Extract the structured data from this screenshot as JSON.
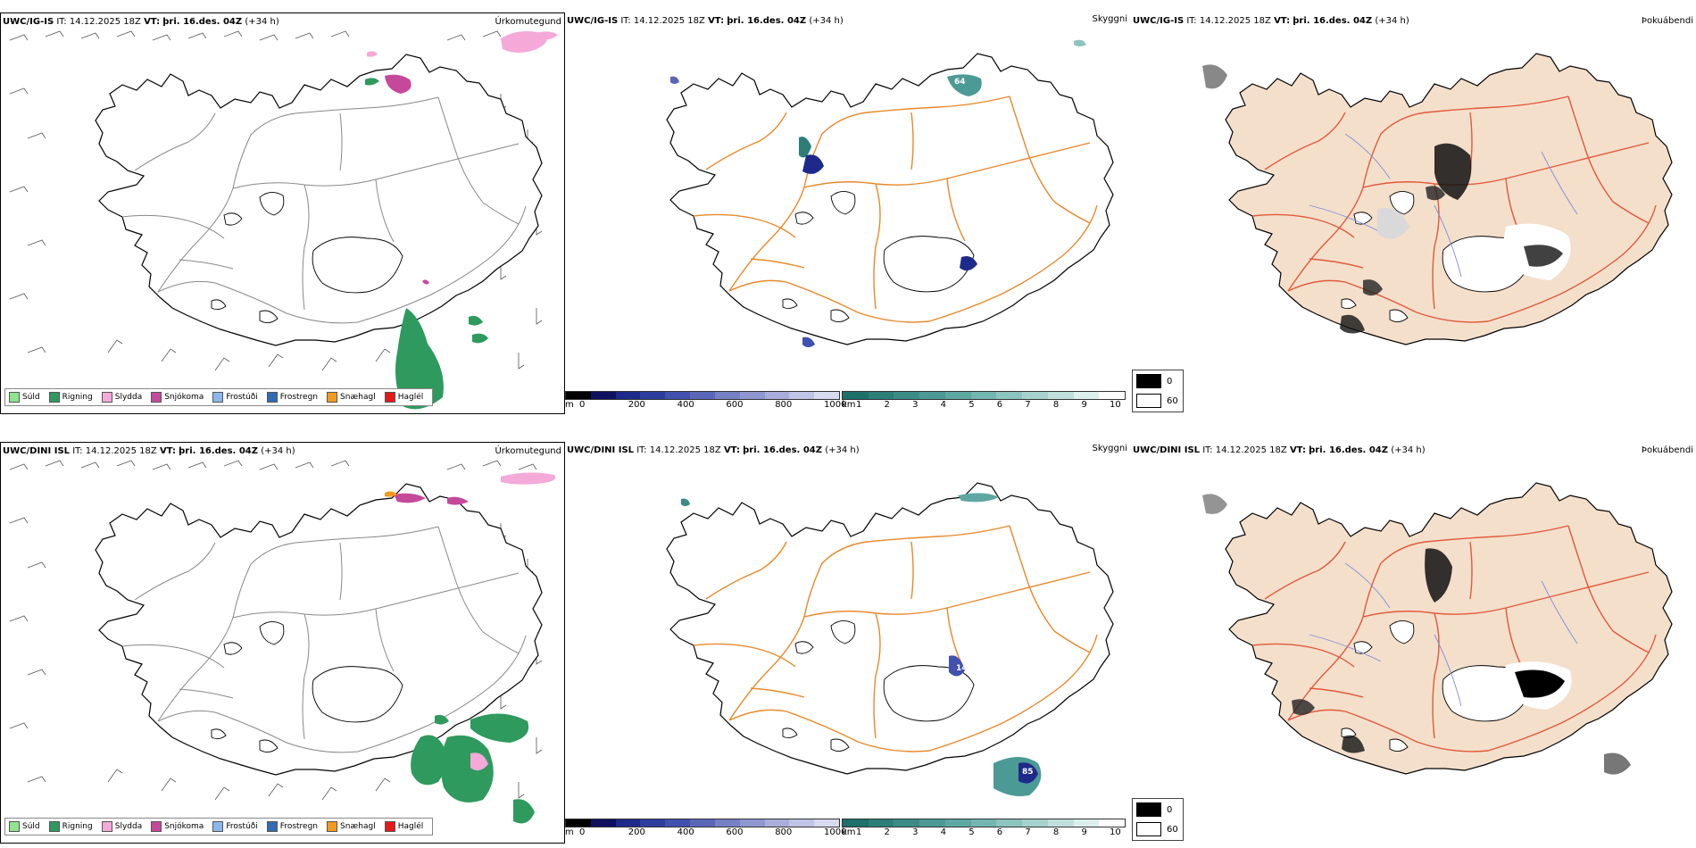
{
  "rows": [
    {
      "header": {
        "model": "UWC/IG-IS",
        "it_label": "IT:",
        "it_value": "14.12.2025 18Z",
        "vt_label": "VT:",
        "vt_value": "þri. 16.des. 04Z",
        "lead": "(+34 h)"
      },
      "panels": {
        "precip": {
          "title": "Úrkomutegund"
        },
        "visibility": {
          "title": "Skyggni",
          "labels": [
            "64"
          ]
        },
        "cloud": {
          "title": "Þokuábendi"
        }
      }
    },
    {
      "header": {
        "model": "UWC/DINI ISL",
        "it_label": "IT:",
        "it_value": "14.12.2025 18Z",
        "vt_label": "VT:",
        "vt_value": "þri. 16.des. 04Z",
        "lead": "(+34 h)"
      },
      "panels": {
        "precip": {
          "title": "Úrkomutegund"
        },
        "visibility": {
          "title": "Skyggni",
          "labels": [
            "14",
            "85"
          ]
        },
        "cloud": {
          "title": "Þokuábendi"
        }
      }
    }
  ],
  "precip_legend": [
    {
      "label": "Súld",
      "color": "#8ee58e"
    },
    {
      "label": "Rigning",
      "color": "#2e9a5e"
    },
    {
      "label": "Slydda",
      "color": "#f4a9d8"
    },
    {
      "label": "Snjókoma",
      "color": "#c5489b"
    },
    {
      "label": "Frostúði",
      "color": "#8ab8ec"
    },
    {
      "label": "Frostregn",
      "color": "#2f6db5"
    },
    {
      "label": "Snæhagl",
      "color": "#f39a1e"
    },
    {
      "label": "Haglél",
      "color": "#e51919"
    }
  ],
  "elevation_bar": {
    "unit": "m",
    "ticks": [
      "0",
      "200",
      "400",
      "600",
      "800",
      "1000"
    ],
    "colors": [
      "#000000",
      "#101060",
      "#1e2a8a",
      "#2d3d9e",
      "#4151ae",
      "#5a67b9",
      "#7680c5",
      "#8f97d0",
      "#a8addb",
      "#c0c4e6",
      "#d8daf0"
    ]
  },
  "visibility_bar": {
    "unit": "km",
    "ticks": [
      "1",
      "2",
      "3",
      "4",
      "5",
      "6",
      "7",
      "8",
      "9",
      "10"
    ],
    "colors": [
      "#1f6f6b",
      "#2c7e79",
      "#3b8c87",
      "#4b9a95",
      "#5ea8a3",
      "#74b6b1",
      "#8cc4bf",
      "#a6d2ce",
      "#c1e0dd",
      "#dcefec",
      "#ffffff"
    ]
  },
  "cloud_legend": [
    {
      "label": "0",
      "color": "#000000"
    },
    {
      "label": "60",
      "color": "#ffffff"
    }
  ]
}
